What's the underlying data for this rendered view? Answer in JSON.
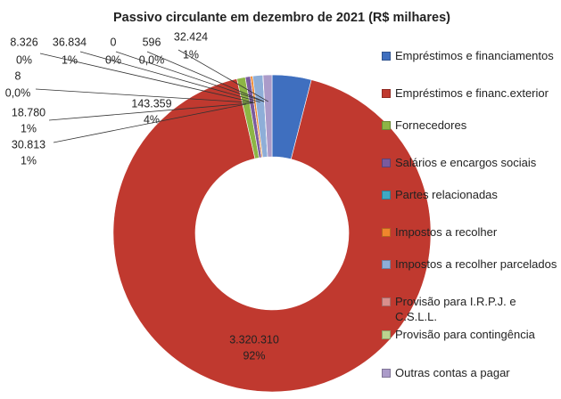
{
  "chart_data": {
    "type": "donut",
    "title": "Passivo circulante em dezembro de 2021 (R$ milhares)",
    "categories": [
      "Empréstimos e financiamentos",
      "Empréstimos e financ.exterior",
      "Fornecedores",
      "Salários e encargos sociais",
      "Partes relacionadas",
      "Impostos a recolher",
      "Impostos a recolher parcelados",
      "Provisão para I.R.P.J.  e C.S.L.L.",
      "Provisão para contingência",
      "Outras contas a pagar"
    ],
    "values": [
      143359,
      3320310,
      30813,
      18780,
      8,
      8326,
      36834,
      0,
      596,
      32424
    ],
    "value_labels": [
      "143.359",
      "3.320.310",
      "30.813",
      "18.780",
      "8",
      "8.326",
      "36.834",
      "0",
      "596",
      "32.424"
    ],
    "percents": [
      4,
      92,
      1,
      1,
      0,
      0,
      1,
      0,
      0,
      1
    ],
    "percent_labels": [
      "4%",
      "92%",
      "1%",
      "1%",
      "0,0%",
      "0%",
      "1%",
      "0%",
      "0,0%",
      "1%"
    ],
    "colors": [
      "#3f6fbf",
      "#c0392f",
      "#8db545",
      "#7a5a9e",
      "#3fa9c4",
      "#f0862c",
      "#8eaed8",
      "#d98f8c",
      "#bcd48f",
      "#ab9bc9"
    ],
    "legend": "right"
  }
}
